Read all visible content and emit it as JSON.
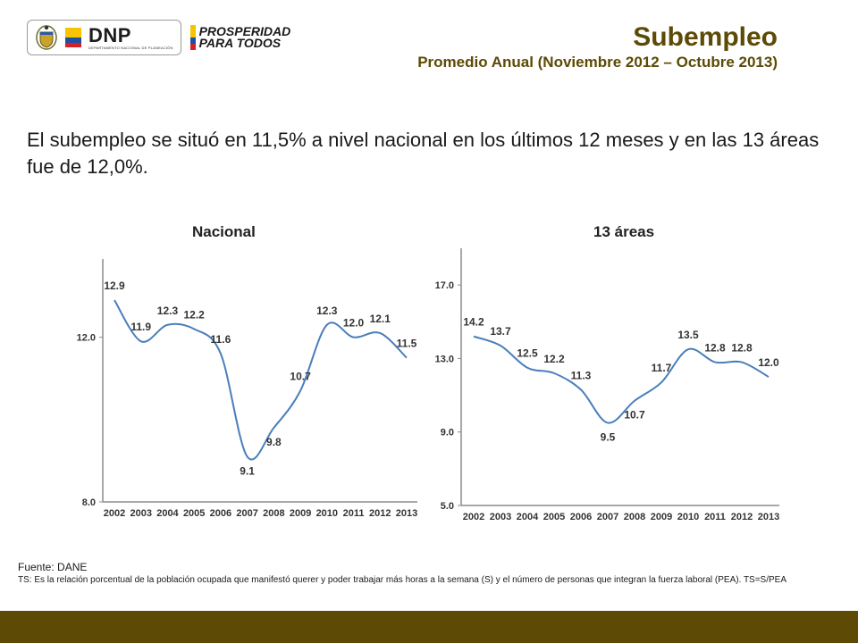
{
  "header": {
    "logo_dnp": "DNP",
    "logo_dnp_sub": "DEPARTAMENTO NACIONAL DE PLANEACIÓN",
    "logo_prosperidad_line1": "PROSPERIDAD",
    "logo_prosperidad_line2": "PARA TODOS",
    "title": "Subempleo",
    "subtitle": "Promedio Anual (Noviembre 2012 – Octubre 2013)"
  },
  "lead_text": "El subempleo se situó en 11,5% a nivel nacional en los últimos 12 meses y en las 13 áreas fue de 12,0%.",
  "colors": {
    "brand": "#5c4a05",
    "line": "#4a7ebb",
    "axis": "#8c8c8c"
  },
  "chart_data": [
    {
      "type": "line",
      "title": "Nacional",
      "x": [
        "2002",
        "2003",
        "2004",
        "2005",
        "2006",
        "2007",
        "2008",
        "2009",
        "2010",
        "2011",
        "2012",
        "2013"
      ],
      "series": [
        {
          "values": [
            12.9,
            11.9,
            12.3,
            12.2,
            11.6,
            9.1,
            9.8,
            10.7,
            12.3,
            12.0,
            12.1,
            11.5
          ]
        }
      ],
      "data_labels": [
        "12.9",
        "11.9",
        "12.3",
        "12.2",
        "11.6",
        "9.1",
        "9.8",
        "10.7",
        "12.3",
        "12.0",
        "12.1",
        "11.5"
      ],
      "yticks": [
        "12.0",
        "8.0"
      ],
      "ylim": [
        8.0,
        13.9
      ],
      "grid": false
    },
    {
      "type": "line",
      "title": "13 áreas",
      "x": [
        "2002",
        "2003",
        "2004",
        "2005",
        "2006",
        "2007",
        "2008",
        "2009",
        "2010",
        "2011",
        "2012",
        "2013"
      ],
      "series": [
        {
          "values": [
            14.2,
            13.7,
            12.5,
            12.2,
            11.3,
            9.5,
            10.7,
            11.7,
            13.5,
            12.8,
            12.8,
            12.0
          ]
        }
      ],
      "data_labels": [
        "14.2",
        "13.7",
        "12.5",
        "12.2",
        "11.3",
        "9.5",
        "10.7",
        "11.7",
        "13.5",
        "12.8",
        "12.8",
        "12.0"
      ],
      "yticks": [
        "17.0",
        "13.0",
        "9.0",
        "5.0"
      ],
      "ylim": [
        5.0,
        19.0
      ],
      "grid": false
    }
  ],
  "footer": {
    "fuente": "Fuente: DANE",
    "ts": "TS:  Es la relación porcentual de la población ocupada que manifestó querer y poder trabajar más horas a la semana (S) y el número de personas que integran la fuerza laboral (PEA). TS=S/PEA"
  }
}
